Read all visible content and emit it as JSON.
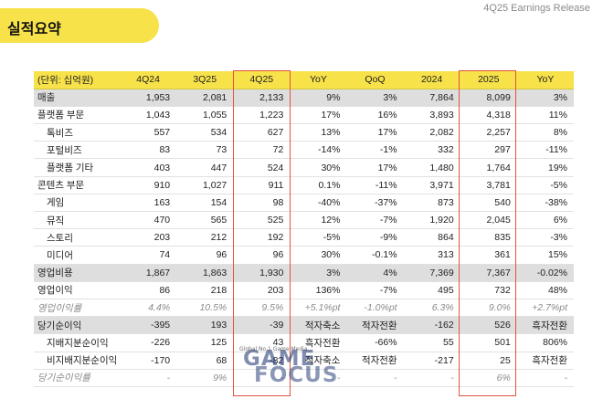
{
  "header": {
    "title": "실적요약",
    "release": "4Q25 Earnings Release"
  },
  "table": {
    "columns": [
      "(단위: 십억원)",
      "4Q24",
      "3Q25",
      "4Q25",
      "YoY",
      "QoQ",
      "2024",
      "2025",
      "YoY"
    ],
    "rows": [
      {
        "label": "매출",
        "values": [
          "1,953",
          "2,081",
          "2,133",
          "9%",
          "3%",
          "7,864",
          "8,099",
          "3%"
        ],
        "style": "grey"
      },
      {
        "label": "플랫폼 부문",
        "values": [
          "1,043",
          "1,055",
          "1,223",
          "17%",
          "16%",
          "3,893",
          "4,318",
          "11%"
        ],
        "style": ""
      },
      {
        "label": "톡비즈",
        "values": [
          "557",
          "534",
          "627",
          "13%",
          "17%",
          "2,082",
          "2,257",
          "8%"
        ],
        "style": "sub"
      },
      {
        "label": "포털비즈",
        "values": [
          "83",
          "73",
          "72",
          "-14%",
          "-1%",
          "332",
          "297",
          "-11%"
        ],
        "style": "sub"
      },
      {
        "label": "플랫폼 기타",
        "values": [
          "403",
          "447",
          "524",
          "30%",
          "17%",
          "1,480",
          "1,764",
          "19%"
        ],
        "style": "sub"
      },
      {
        "label": "콘텐츠 부문",
        "values": [
          "910",
          "1,027",
          "911",
          "0.1%",
          "-11%",
          "3,971",
          "3,781",
          "-5%"
        ],
        "style": ""
      },
      {
        "label": "게임",
        "values": [
          "163",
          "154",
          "98",
          "-40%",
          "-37%",
          "873",
          "540",
          "-38%"
        ],
        "style": "sub"
      },
      {
        "label": "뮤직",
        "values": [
          "470",
          "565",
          "525",
          "12%",
          "-7%",
          "1,920",
          "2,045",
          "6%"
        ],
        "style": "sub"
      },
      {
        "label": "스토리",
        "values": [
          "203",
          "212",
          "192",
          "-5%",
          "-9%",
          "864",
          "835",
          "-3%"
        ],
        "style": "sub"
      },
      {
        "label": "미디어",
        "values": [
          "74",
          "96",
          "96",
          "30%",
          "-0.1%",
          "313",
          "361",
          "15%"
        ],
        "style": "sub"
      },
      {
        "label": "영업비용",
        "values": [
          "1,867",
          "1,863",
          "1,930",
          "3%",
          "4%",
          "7,369",
          "7,367",
          "-0.02%"
        ],
        "style": "grey"
      },
      {
        "label": "영업이익",
        "values": [
          "86",
          "218",
          "203",
          "136%",
          "-7%",
          "495",
          "732",
          "48%"
        ],
        "style": ""
      },
      {
        "label": "영업이익률",
        "values": [
          "4.4%",
          "10.5%",
          "9.5%",
          "+5.1%pt",
          "-1.0%pt",
          "6.3%",
          "9.0%",
          "+2.7%pt"
        ],
        "style": "ratio"
      },
      {
        "label": "당기순이익",
        "values": [
          "-395",
          "193",
          "-39",
          "적자축소",
          "적자전환",
          "-162",
          "526",
          "흑자전환"
        ],
        "style": "grey"
      },
      {
        "label": "지배지분순이익",
        "values": [
          "-226",
          "125",
          "43",
          "흑자전환",
          "-66%",
          "55",
          "501",
          "806%"
        ],
        "style": "sub"
      },
      {
        "label": "비지배지분순이익",
        "values": [
          "-170",
          "68",
          "-82",
          "적자축소",
          "적자전환",
          "-217",
          "25",
          "흑자전환"
        ],
        "style": "sub"
      },
      {
        "label": "당기순이익률",
        "values": [
          "-",
          "9%",
          "-",
          "-",
          "-",
          "-",
          "6%",
          "-"
        ],
        "style": "ratio"
      }
    ]
  },
  "watermark": {
    "line1": "GAME",
    "line2": "FOCUS",
    "tag": "Global No.1 Game Media"
  },
  "colors": {
    "accent_yellow": "#f7e24a",
    "highlight_red": "#e0523f",
    "row_grey": "#dedede"
  }
}
